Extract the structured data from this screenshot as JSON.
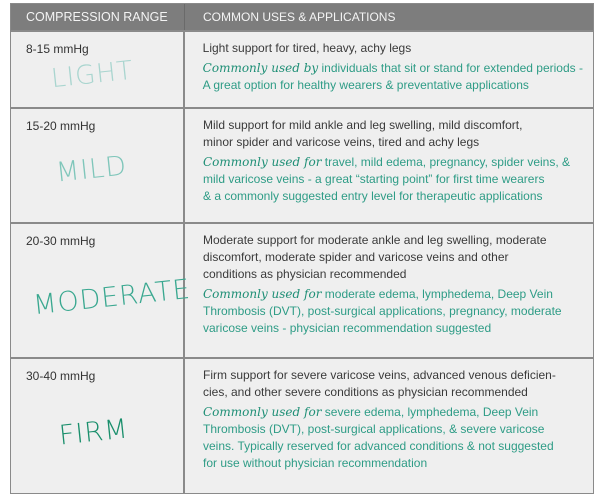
{
  "header": {
    "col1": "COMPRESSION RANGE",
    "col2": "COMMON USES & APPLICATIONS"
  },
  "colors": {
    "header_bg": "#7d7d7d",
    "row_bg": "#efefef",
    "accent_teal": "#2e9c86"
  },
  "rows": [
    {
      "range": "8-15 mmHg",
      "level": "LIGHT",
      "level_color": "#a9d5cf",
      "desc": [
        "Light support for tired, heavy, achy legs"
      ],
      "uses_lead": "Commonly used by",
      "uses": [
        " individuals that sit or stand for extended periods -",
        "A great option for healthy wearers & preventative applications"
      ]
    },
    {
      "range": "15-20 mmHg",
      "level": "MILD",
      "level_color": "#7fc6ba",
      "desc": [
        "Mild support for mild ankle and leg swelling, mild discomfort,",
        "minor spider and varicose veins, tired and achy legs"
      ],
      "uses_lead": "Commonly used for",
      "uses": [
        " travel, mild edema, pregnancy, spider veins, &",
        "mild varicose veins - a great “starting point” for first time wearers",
        "& a commonly suggested entry level for therapeutic applications"
      ]
    },
    {
      "range": "20-30 mmHg",
      "level": "MODERATE",
      "level_color": "#3aa890",
      "desc": [
        "Moderate support for moderate ankle and leg swelling, moderate",
        "discomfort, moderate spider and varicose veins and other",
        "conditions as physician recommended"
      ],
      "uses_lead": "Commonly used for",
      "uses": [
        " moderate edema, lymphedema, Deep Vein",
        "Thrombosis (DVT), post-surgical applications, pregnancy, moderate",
        "varicose veins - physician recommendation suggested"
      ]
    },
    {
      "range": "30-40 mmHg",
      "level": "FIRM",
      "level_color": "#1a8f6c",
      "desc": [
        "Firm support for severe varicose veins, advanced venous deficien-",
        "cies, and other severe conditions as physician recommended"
      ],
      "uses_lead": "Commonly used for",
      "uses": [
        " severe edema, lymphedema, Deep Vein",
        "Thrombosis (DVT), post-surgical applications, & severe varicose",
        "veins. Typically reserved for advanced conditions & not suggested",
        "for use without physician recommendation"
      ]
    }
  ]
}
